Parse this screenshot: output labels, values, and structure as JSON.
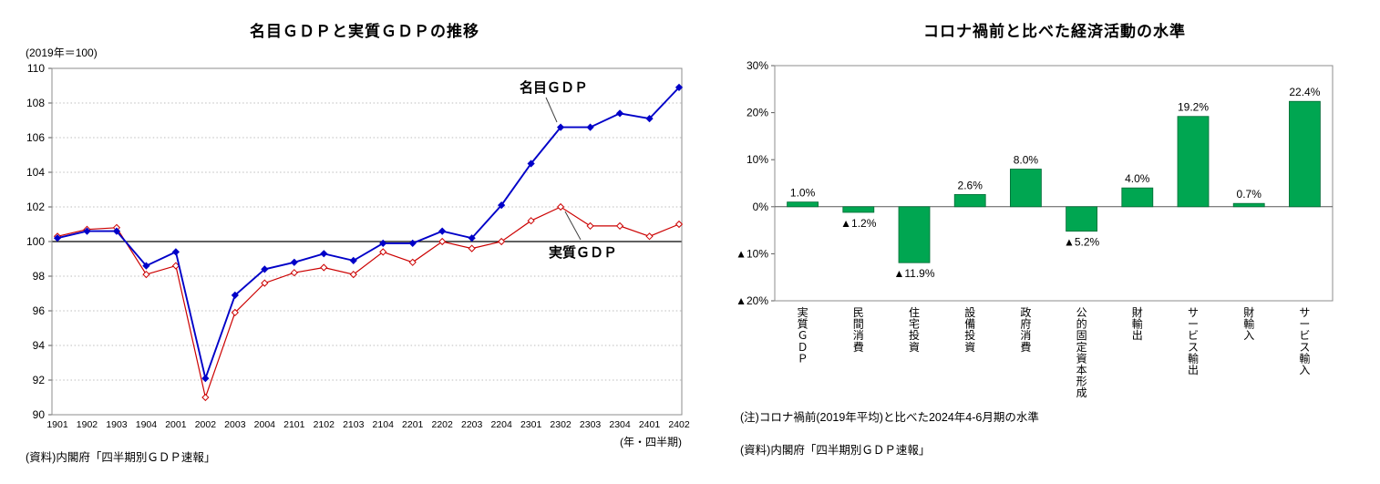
{
  "left_chart": {
    "title": "名目ＧＤＰと実質ＧＤＰの推移",
    "unit_note": "(2019年＝100)",
    "x_axis_note": "(年・四半期)",
    "source": "(資料)内閣府「四半期別ＧＤＰ速報」",
    "series_labels": {
      "nominal": "名目ＧＤＰ",
      "real": "実質ＧＤＰ"
    }
  },
  "right_chart": {
    "title": "コロナ禍前と比べた経済活動の水準",
    "note": "(注)コロナ禍前(2019年平均)と比べた2024年4-6月期の水準",
    "source": "(資料)内閣府「四半期別ＧＤＰ速報」"
  },
  "chart_data": [
    {
      "type": "line",
      "title": "名目GDPと実質GDPの推移",
      "unit": "(2019年＝100)",
      "xlabel": "(年・四半期)",
      "x": [
        "1901",
        "1902",
        "1903",
        "1904",
        "2001",
        "2002",
        "2003",
        "2004",
        "2101",
        "2102",
        "2103",
        "2104",
        "2201",
        "2202",
        "2203",
        "2204",
        "2301",
        "2302",
        "2303",
        "2304",
        "2401",
        "2402"
      ],
      "series": [
        {
          "name": "名目GDP",
          "color": "#0000C8",
          "values": [
            100.2,
            100.6,
            100.6,
            98.6,
            99.4,
            92.1,
            96.9,
            98.4,
            98.8,
            99.3,
            98.9,
            99.9,
            99.9,
            100.6,
            100.2,
            102.1,
            104.5,
            106.6,
            106.6,
            107.4,
            107.1,
            108.9
          ]
        },
        {
          "name": "実質GDP",
          "color": "#CC0000",
          "values": [
            100.3,
            100.7,
            100.8,
            98.1,
            98.6,
            91.0,
            95.9,
            97.6,
            98.2,
            98.5,
            98.1,
            99.4,
            98.8,
            100.0,
            99.6,
            100.0,
            101.2,
            102.0,
            100.9,
            100.9,
            100.3,
            101.0
          ]
        }
      ],
      "ylim": [
        90,
        110
      ],
      "ytick_step": 2,
      "baseline": 100,
      "grid": "horizontal-dotted",
      "legend_position": "annotations-on-plot"
    },
    {
      "type": "bar",
      "title": "コロナ禍前と比べた経済活動の水準",
      "categories": [
        "実質ＧＤＰ",
        "民間消費",
        "住宅投資",
        "設備投資",
        "政府消費",
        "公的固定資本形成",
        "財輸出",
        "サービス輸出",
        "財輸入",
        "サービス輸入"
      ],
      "values": [
        1.0,
        -1.2,
        -11.9,
        2.6,
        8.0,
        -5.2,
        4.0,
        19.2,
        0.7,
        22.4
      ],
      "labels": [
        "1.0%",
        "▲1.2%",
        "▲11.9%",
        "2.6%",
        "8.0%",
        "▲5.2%",
        "4.0%",
        "19.2%",
        "0.7%",
        "22.4%"
      ],
      "bar_color": "#00A651",
      "bar_border_color": "#006B35",
      "ylim": [
        -20,
        30
      ],
      "yticks": [
        30,
        20,
        10,
        0,
        -10,
        -20
      ],
      "ytick_labels": [
        "30%",
        "20%",
        "10%",
        "0%",
        "▲10%",
        "▲20%"
      ],
      "grid": "off",
      "legend_position": "none"
    }
  ]
}
